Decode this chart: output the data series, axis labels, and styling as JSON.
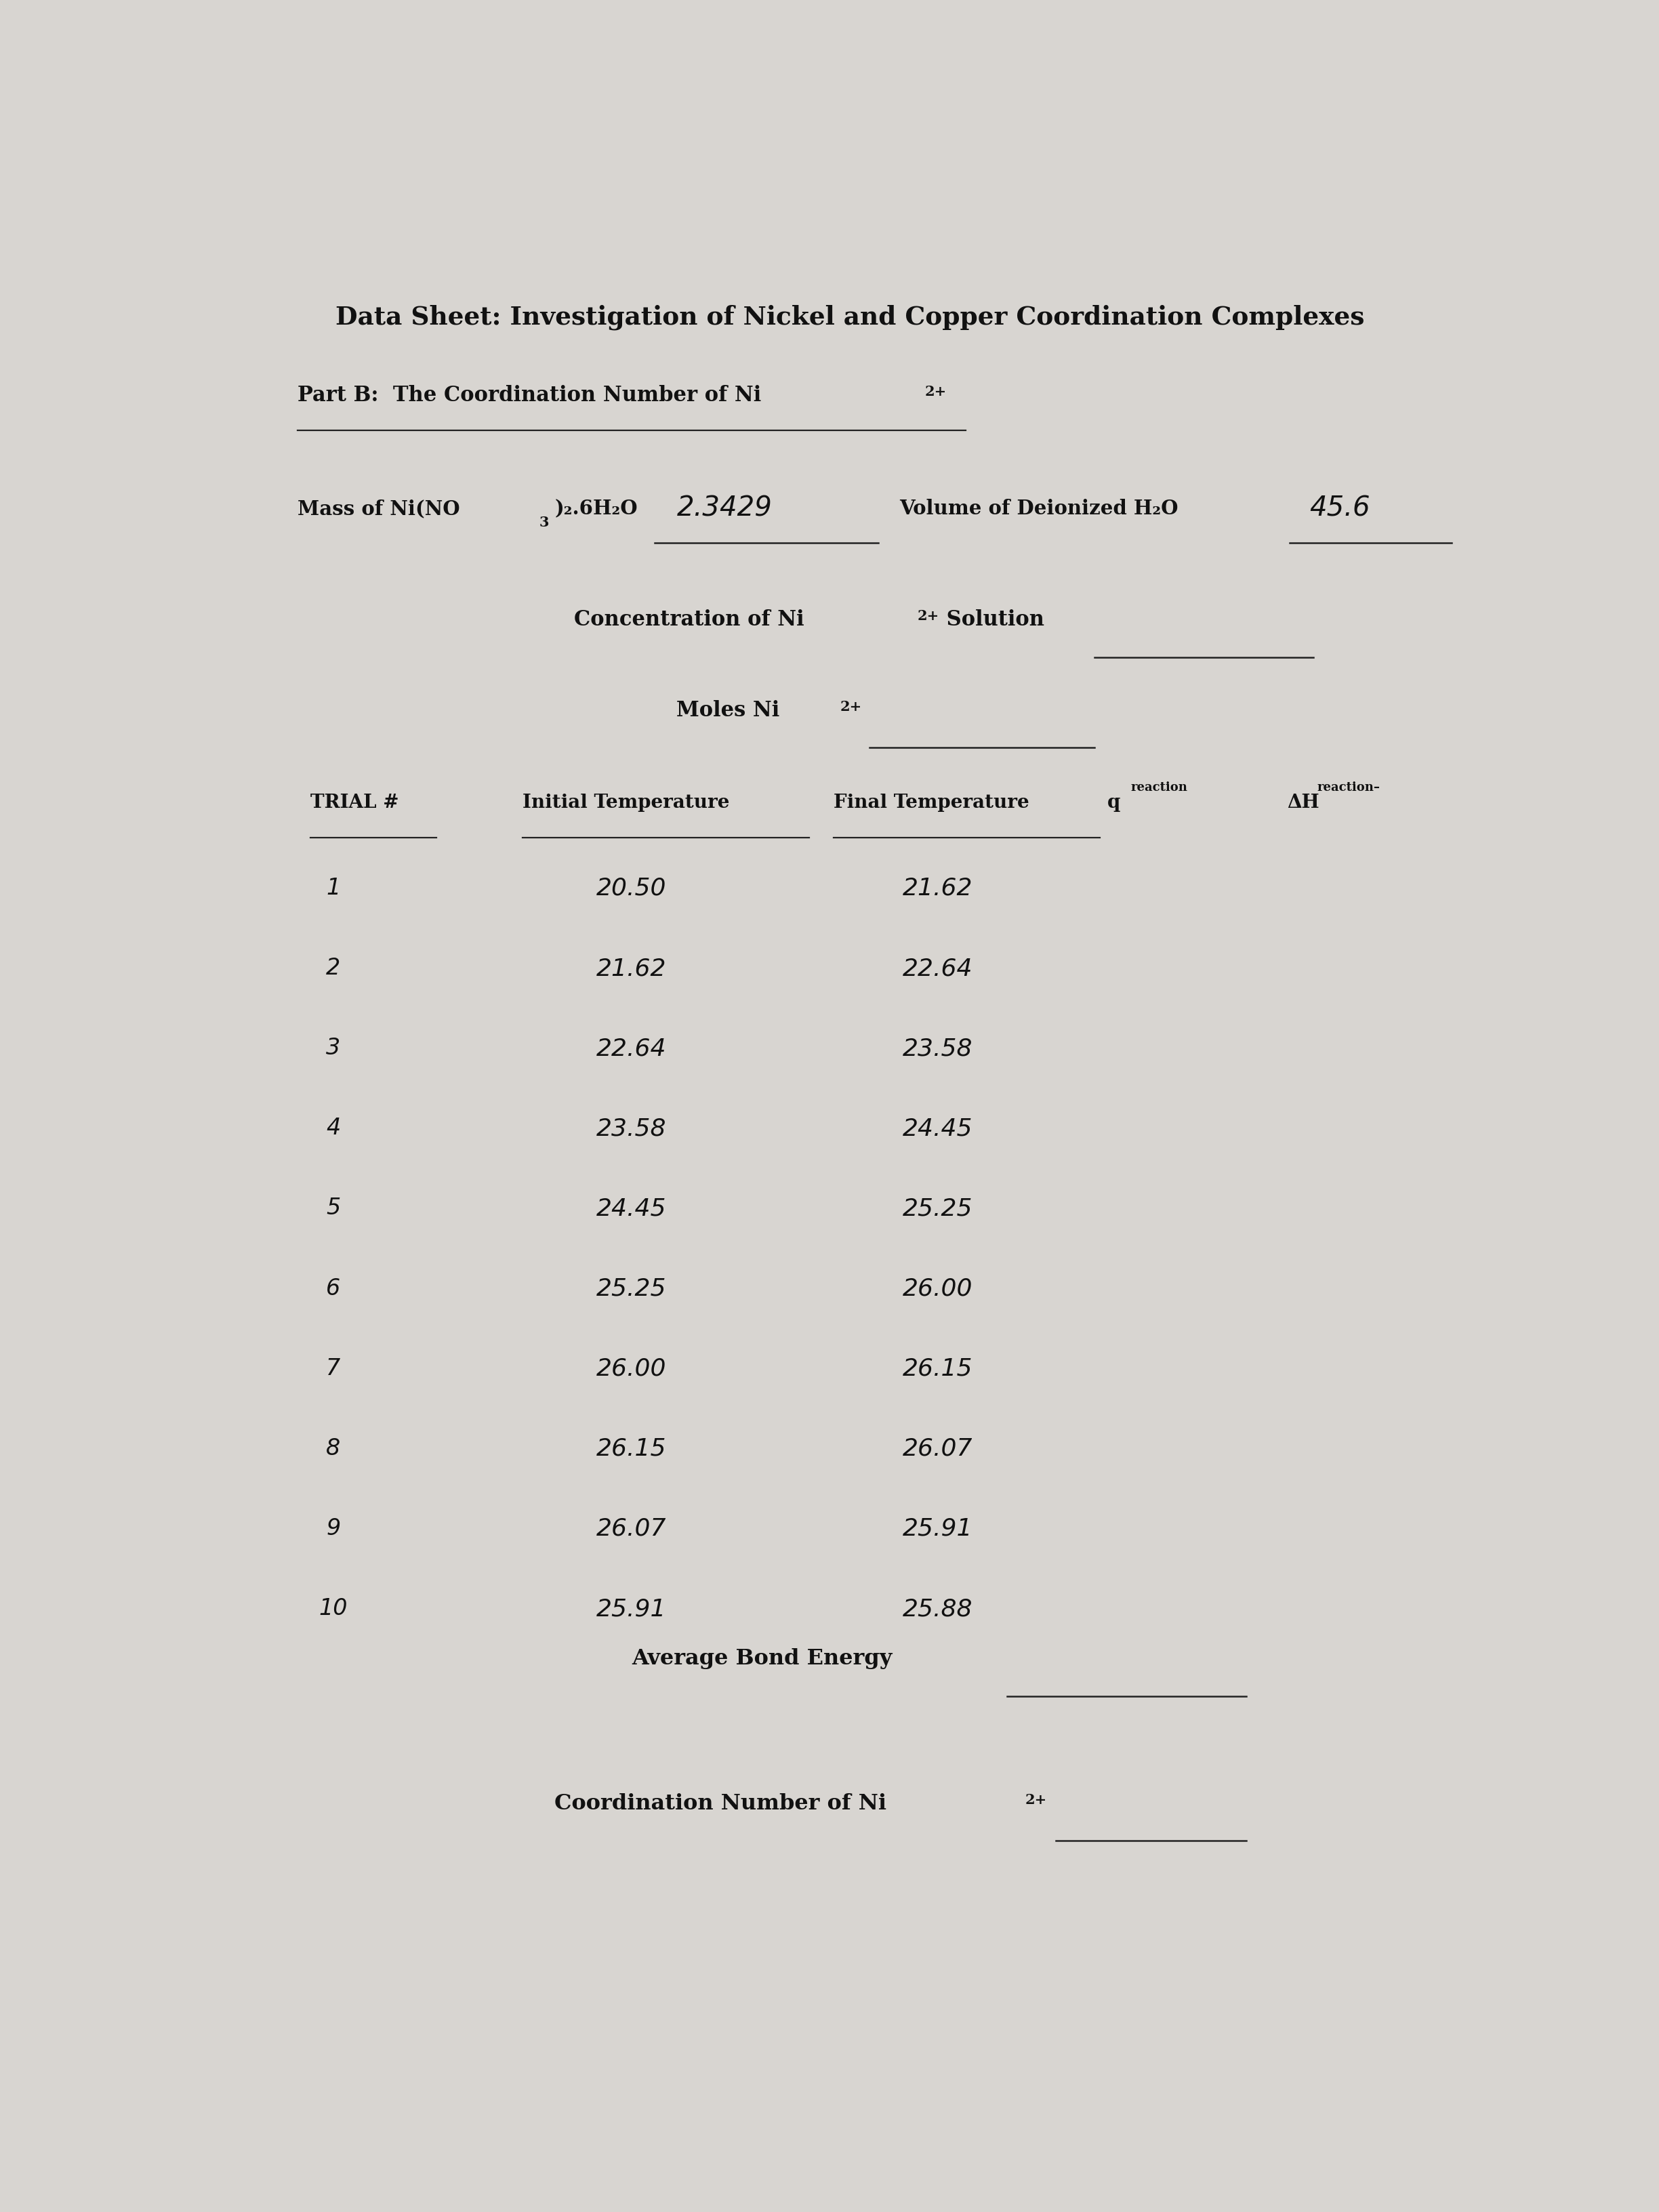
{
  "bg_color": "#d8d5d1",
  "title": "Data Sheet: Investigation of Nickel and Copper Coordination Complexes",
  "part_b_text": "Part B:  The Coordination Number of Ni",
  "part_b_sup": "2+",
  "mass_label_a": "Mass of Ni(NO",
  "mass_label_sub": "3",
  "mass_label_b": ")₂.6H₂O",
  "mass_value": "2.3429",
  "volume_label": "Volume of Deionized H₂O",
  "volume_value": "45.6",
  "conc_label_a": "Concentration of Ni",
  "conc_sup": "2+",
  "conc_label_b": " Solution",
  "moles_label_a": "Moles Ni",
  "moles_sup": "2+",
  "trial_numbers": [
    "1",
    "2",
    "3",
    "4",
    "5",
    "6",
    "7",
    "8",
    "9",
    "10"
  ],
  "initial_temps": [
    "20.50",
    "21.62",
    "22.64",
    "23.58",
    "24.45",
    "25.25",
    "26.00",
    "26.15",
    "26.07",
    "25.91"
  ],
  "final_temps": [
    "21.62",
    "22.64",
    "23.58",
    "24.45",
    "25.25",
    "26.00",
    "26.15",
    "26.07",
    "25.91",
    "25.88"
  ],
  "avg_label": "Average Bond Energy",
  "coord_label_a": "Coordination Number of Ni",
  "coord_sup": "2+"
}
